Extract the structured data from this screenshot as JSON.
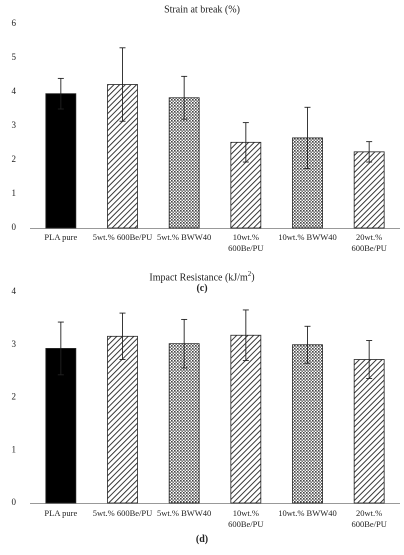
{
  "chart_data": [
    {
      "type": "bar",
      "title": "Strain at break (%)",
      "panel_label": "(c)",
      "categories": [
        "PLA pure",
        "5wt.% 600Be/PU",
        "5wt.% BWW40",
        "10wt.% 600Be/PU",
        "10wt.% BWW40",
        "20wt.% 600Be/PU"
      ],
      "category_lines": [
        [
          "PLA pure"
        ],
        [
          "5wt.% 600Be/PU"
        ],
        [
          "5wt.% BWW40"
        ],
        [
          "10wt.%",
          "600Be/PU"
        ],
        [
          "10wt.% BWW40"
        ],
        [
          "20wt.%",
          "600Be/PU"
        ]
      ],
      "values": [
        3.95,
        4.22,
        3.83,
        2.52,
        2.65,
        2.24
      ],
      "error": [
        0.45,
        1.08,
        0.63,
        0.58,
        0.9,
        0.3
      ],
      "yticks": [
        "0",
        "1",
        "2",
        "3",
        "4",
        "5",
        "6"
      ],
      "ylim": [
        0,
        6
      ],
      "grid": false,
      "bar_fills": [
        "solid-black",
        "diagonal-hatch",
        "dotted-fill",
        "diagonal-hatch",
        "dotted-fill",
        "diagonal-hatch"
      ]
    },
    {
      "type": "bar",
      "title": "Impact Resistance (kJ/m",
      "title_sup": "2",
      "title_end": ")",
      "panel_label": "(d)",
      "categories": [
        "PLA pure",
        "5wt.% 600Be/PU",
        "5wt.% BWW40",
        "10wt.% 600Be/PU",
        "10wt.% BWW40",
        "20wt.% 600Be/PU"
      ],
      "category_lines": [
        [
          "PLA pure"
        ],
        [
          "5wt.% 600Be/PU"
        ],
        [
          "5wt.% BWW40"
        ],
        [
          "10wt.%",
          "600Be/PU"
        ],
        [
          "10wt.% BWW40"
        ],
        [
          "20wt.%",
          "600Be/PU"
        ]
      ],
      "values": [
        2.93,
        3.16,
        3.02,
        3.18,
        3.0,
        2.72
      ],
      "error": [
        0.5,
        0.44,
        0.46,
        0.48,
        0.35,
        0.36
      ],
      "yticks": [
        "0",
        "1",
        "2",
        "3",
        "4"
      ],
      "ylim": [
        0,
        4
      ],
      "grid": false,
      "bar_fills": [
        "solid-black",
        "diagonal-hatch",
        "dotted-fill",
        "diagonal-hatch",
        "dotted-fill",
        "diagonal-hatch"
      ]
    }
  ]
}
